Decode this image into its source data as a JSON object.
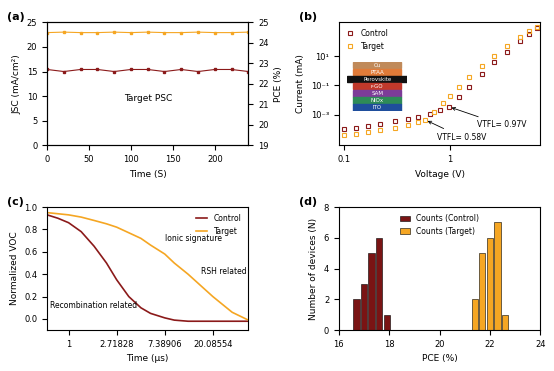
{
  "chart_data": [
    {
      "type": "line",
      "title": "(a)",
      "x_label": "Time (S)",
      "y_label": "JSC (mA/cm²)",
      "y2_label": "PCE (%)",
      "annotations": [
        "Target PSC"
      ],
      "x": [
        0,
        20,
        40,
        60,
        80,
        100,
        120,
        140,
        160,
        180,
        200,
        220,
        240
      ],
      "series": [
        {
          "color": "#f5a623",
          "marker": "square",
          "line_style": "solid",
          "values": [
            22.9,
            23.0,
            22.9,
            22.9,
            23.0,
            22.9,
            23.0,
            22.9,
            22.9,
            23.0,
            22.9,
            22.9,
            23.0
          ]
        },
        {
          "color": "#8b1a1a",
          "marker": "square",
          "line_style": "solid",
          "axis": "y2",
          "values": [
            22.7,
            22.6,
            22.7,
            22.7,
            22.6,
            22.7,
            22.7,
            22.6,
            22.7,
            22.6,
            22.7,
            22.7,
            22.6
          ]
        }
      ],
      "xlim": [
        0,
        240
      ],
      "xticks": [
        0,
        50,
        100,
        150,
        200
      ],
      "ylim": [
        0,
        25
      ],
      "yticks": [
        0,
        5,
        10,
        15,
        20,
        25
      ],
      "y2lim": [
        19,
        25
      ],
      "y2ticks": [
        19,
        20,
        21,
        22,
        23,
        24,
        25
      ]
    },
    {
      "type": "scatter",
      "title": "(b)",
      "x_label": "Voltage (V)",
      "y_label": "Current (mA)",
      "log": true,
      "legend": "upper left",
      "annotations": [
        "VTFL= 0.97V",
        "VTFL= 0.58V"
      ],
      "inset_layers": [
        "Cu",
        "PTAA",
        "Perovskite",
        "r-GO",
        "SAM",
        "NiOx",
        "ITO"
      ],
      "series": [
        {
          "name": "Control",
          "color": "#8b1a1a",
          "marker": "square",
          "x": [
            0.1,
            0.13,
            0.17,
            0.22,
            0.3,
            0.4,
            0.5,
            0.65,
            0.8,
            0.97,
            1.2,
            1.5,
            2.0,
            2.6,
            3.4,
            4.5,
            5.5,
            6.5
          ],
          "values": [
            0.0001,
            0.00013,
            0.00018,
            0.00025,
            0.00035,
            0.0005,
            0.0007,
            0.0012,
            0.002,
            0.0035,
            0.015,
            0.08,
            0.6,
            4,
            20,
            100,
            300,
            800
          ]
        },
        {
          "name": "Target",
          "color": "#f5a623",
          "marker": "square",
          "x": [
            0.1,
            0.13,
            0.17,
            0.22,
            0.3,
            0.4,
            0.5,
            0.58,
            0.7,
            0.85,
            1.0,
            1.2,
            1.5,
            2.0,
            2.6,
            3.4,
            4.5,
            5.5,
            6.5
          ],
          "values": [
            4e-05,
            5e-05,
            7e-05,
            9e-05,
            0.00013,
            0.0002,
            0.0003,
            0.00045,
            0.0015,
            0.006,
            0.02,
            0.08,
            0.35,
            2,
            10,
            50,
            200,
            500,
            1000
          ]
        }
      ],
      "xlim": [
        0.09,
        7
      ],
      "xticks": [
        0.1,
        1
      ],
      "ylim": [
        8e-06,
        2000
      ],
      "yticks": [
        {
          "value": 0.001,
          "label": "10⁻³"
        },
        {
          "value": 0.1,
          "label": "10⁻¹"
        },
        {
          "value": 10,
          "label": "10¹"
        }
      ]
    },
    {
      "type": "line",
      "title": "(c)",
      "x_label": "Time (μs)",
      "y_label": "Normalized VOC",
      "log": "x",
      "legend": "upper right",
      "annotations": [
        "Recombination related",
        "Ionic signature",
        "RSH related"
      ],
      "x": [
        0.64,
        0.8,
        1,
        1.3,
        1.7,
        2.2,
        2.72,
        3.5,
        4.5,
        5.5,
        7.39,
        9,
        12,
        20.09,
        30,
        42
      ],
      "series": [
        {
          "name": "Control",
          "color": "#8b1a1a",
          "line_style": "solid",
          "values": [
            0.93,
            0.9,
            0.86,
            0.78,
            0.65,
            0.5,
            0.35,
            0.2,
            0.1,
            0.05,
            0.01,
            -0.01,
            -0.02,
            -0.02,
            -0.02,
            -0.02
          ]
        },
        {
          "name": "Target",
          "color": "#f5a623",
          "line_style": "solid",
          "values": [
            0.95,
            0.94,
            0.93,
            0.91,
            0.88,
            0.85,
            0.82,
            0.77,
            0.72,
            0.66,
            0.58,
            0.5,
            0.4,
            0.2,
            0.06,
            -0.01
          ]
        }
      ],
      "xlim": [
        0.64,
        42
      ],
      "xticks": [
        1,
        2.71828,
        7.38906,
        20.08554
      ],
      "ylim": [
        -0.1,
        1.0
      ],
      "yticks": [
        0.0,
        0.2,
        0.4,
        0.6,
        0.8,
        1.0
      ]
    },
    {
      "type": "bar",
      "title": "(d)",
      "x_label": "PCE (%)",
      "y_label": "Number of devices (N)",
      "legend": "upper center",
      "x": [
        16.7,
        17.0,
        17.3,
        17.6,
        17.9,
        21.4,
        21.7,
        22.0,
        22.3,
        22.6
      ],
      "series": [
        {
          "name": "Counts (Control)",
          "color": "#7a1414",
          "values": [
            2,
            3,
            5,
            6,
            1,
            null,
            null,
            null,
            null,
            null
          ]
        },
        {
          "name": "Counts (Target)",
          "color": "#f5a623",
          "values": [
            null,
            null,
            null,
            null,
            null,
            2,
            5,
            6,
            7,
            1
          ]
        }
      ],
      "xlim": [
        16,
        24
      ],
      "xticks": [
        16,
        18,
        20,
        22,
        24
      ],
      "ylim": [
        0,
        8
      ],
      "yticks": [
        0,
        2,
        4,
        6,
        8
      ]
    }
  ]
}
